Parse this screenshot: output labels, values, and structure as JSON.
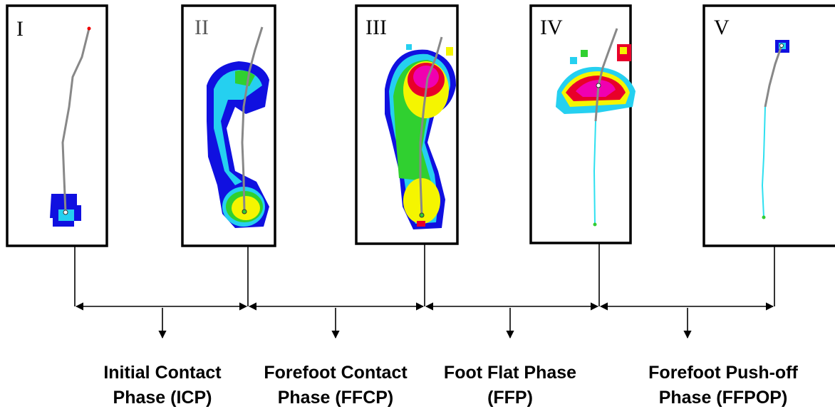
{
  "panels": [
    {
      "label": "I"
    },
    {
      "label": "II"
    },
    {
      "label": "III"
    },
    {
      "label": "IV"
    },
    {
      "label": "V"
    }
  ],
  "phases": [
    {
      "lines": [
        "Initial Contact",
        "Phase (ICP)"
      ]
    },
    {
      "lines": [
        "Forefoot Contact",
        "Phase (FFCP)"
      ]
    },
    {
      "lines": [
        "Foot Flat Phase",
        "(FFP)"
      ]
    },
    {
      "lines": [
        "Forefoot Push-off",
        "Phase (FFPOP)"
      ]
    }
  ]
}
